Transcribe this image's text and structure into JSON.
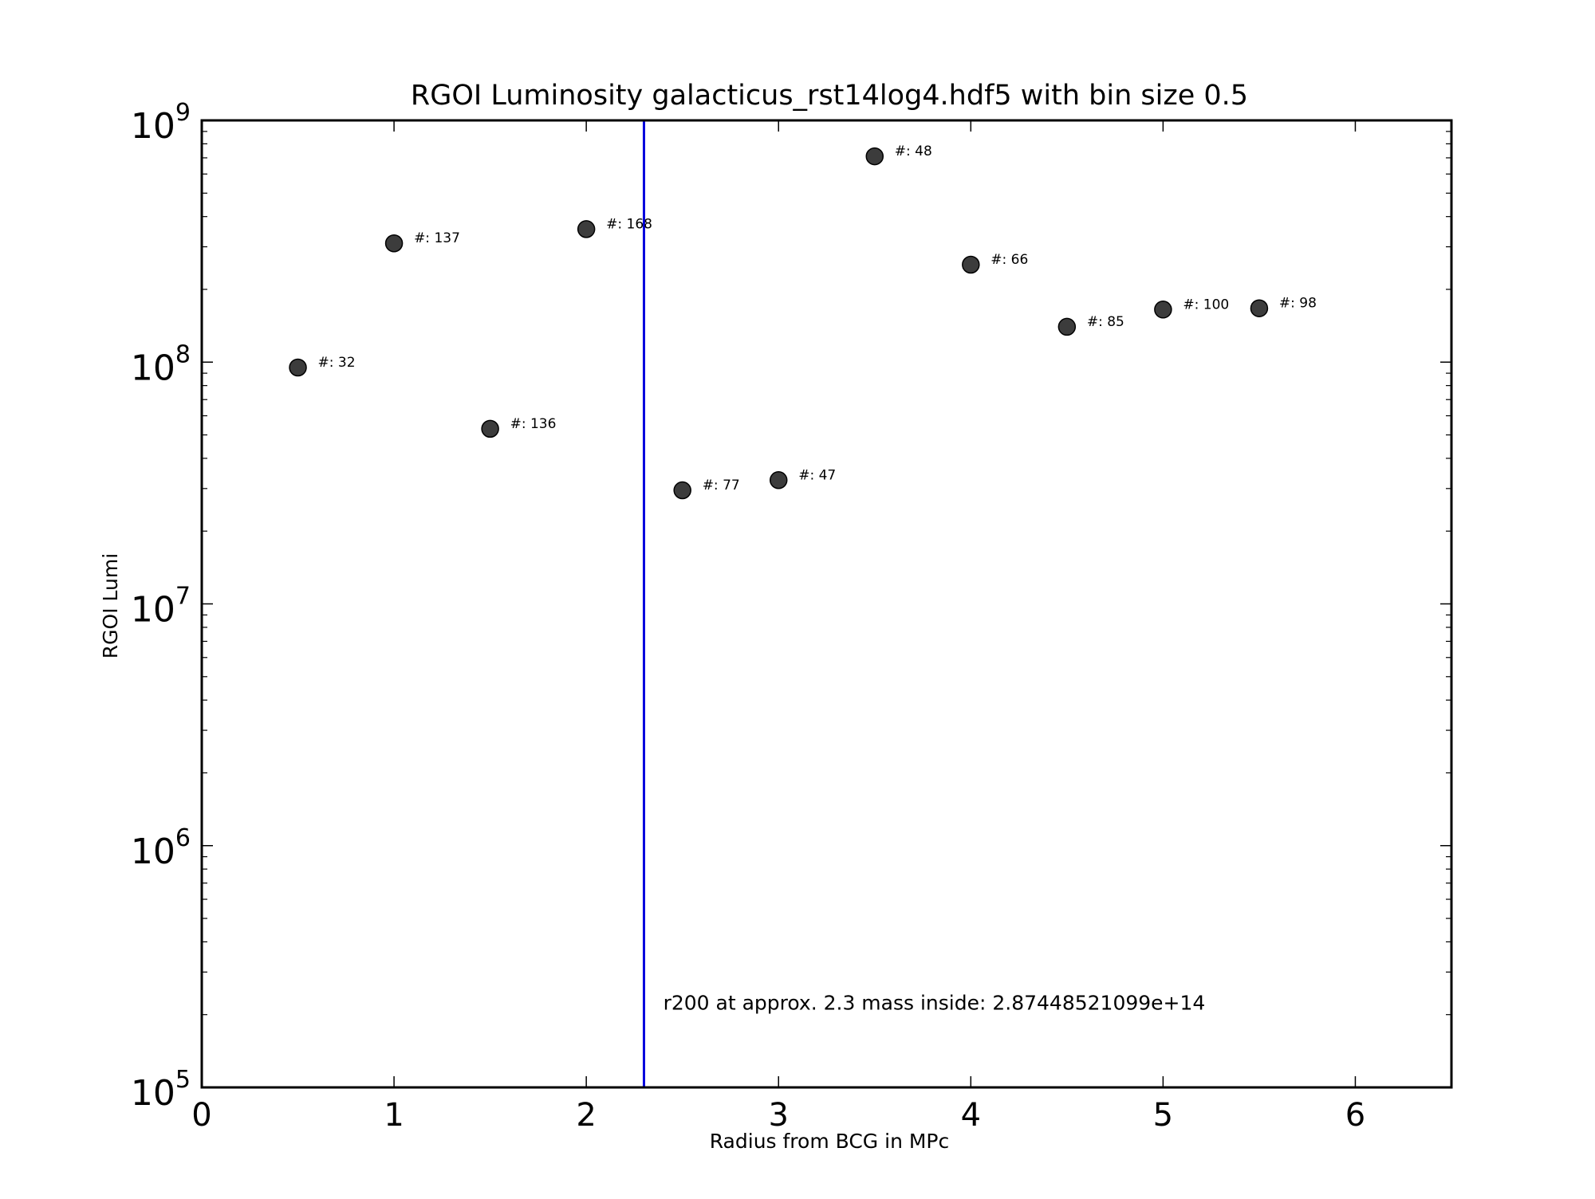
{
  "chart_data": {
    "type": "scatter",
    "title": "RGOI Luminosity galacticus_rst14log4.hdf5 with bin size 0.5",
    "xlabel": "Radius from BCG in MPc",
    "ylabel": "RGOI Lumi",
    "xlim": [
      0,
      6.5
    ],
    "ylim": [
      100000,
      1000000000
    ],
    "yscale": "log",
    "grid": false,
    "x_ticks": [
      0,
      1,
      2,
      3,
      4,
      5,
      6
    ],
    "x_tick_labels": [
      "0",
      "1",
      "2",
      "3",
      "4",
      "5",
      "6"
    ],
    "y_ticks": [
      100000,
      1000000,
      10000000,
      100000000,
      1000000000
    ],
    "y_tick_labels": [
      {
        "base": "10",
        "exp": "5"
      },
      {
        "base": "10",
        "exp": "6"
      },
      {
        "base": "10",
        "exp": "7"
      },
      {
        "base": "10",
        "exp": "8"
      },
      {
        "base": "10",
        "exp": "9"
      }
    ],
    "points": [
      {
        "x": 0.5,
        "y": 95000000,
        "label": "#: 32"
      },
      {
        "x": 1.0,
        "y": 310000000,
        "label": "#: 137"
      },
      {
        "x": 1.5,
        "y": 53000000,
        "label": "#: 136"
      },
      {
        "x": 2.0,
        "y": 355000000,
        "label": "#: 168"
      },
      {
        "x": 2.5,
        "y": 29500000,
        "label": "#: 77"
      },
      {
        "x": 3.0,
        "y": 32500000,
        "label": "#: 47"
      },
      {
        "x": 3.5,
        "y": 710000000,
        "label": "#: 48"
      },
      {
        "x": 4.0,
        "y": 253000000,
        "label": "#: 66"
      },
      {
        "x": 4.5,
        "y": 140000000,
        "label": "#: 85"
      },
      {
        "x": 5.0,
        "y": 165000000,
        "label": "#: 100"
      },
      {
        "x": 5.5,
        "y": 167000000,
        "label": "#: 98"
      }
    ],
    "marker_color": "#3c3c3c",
    "vline": {
      "x": 2.3,
      "color": "#0000dd"
    },
    "annotation": {
      "text": "r200 at approx. 2.3 mass inside: 2.87448521099e+14",
      "x": 2.4,
      "y": 210000
    }
  }
}
